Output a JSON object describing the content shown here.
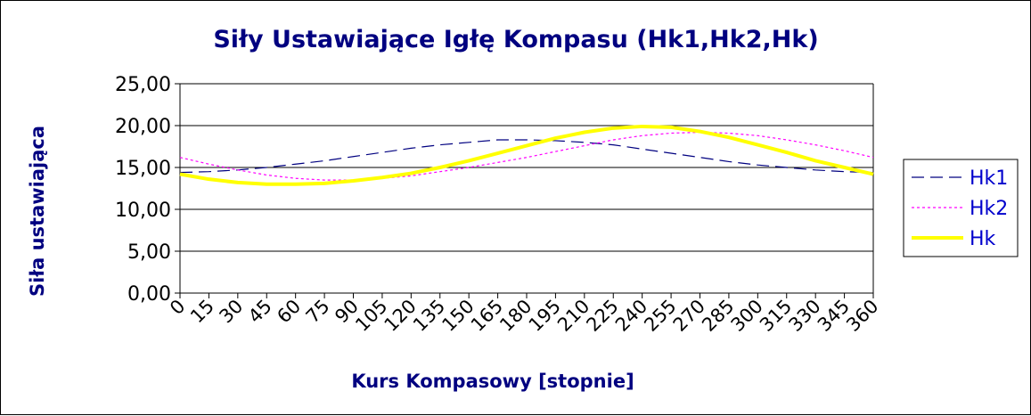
{
  "chart_data": {
    "type": "line",
    "title": "Siły Ustawiające Igłę Kompasu (Hk1,Hk2,Hk)",
    "xlabel": "Kurs Kompasowy  [stopnie]",
    "ylabel": "Siła ustawiająca",
    "categories": [
      "0",
      "15",
      "30",
      "45",
      "60",
      "75",
      "90",
      "105",
      "120",
      "135",
      "150",
      "165",
      "180",
      "195",
      "210",
      "225",
      "240",
      "255",
      "270",
      "285",
      "300",
      "315",
      "330",
      "345",
      "360"
    ],
    "yticks": [
      "0,00",
      "5,00",
      "10,00",
      "15,00",
      "20,00",
      "25,00"
    ],
    "ylim": [
      0,
      25
    ],
    "grid": true,
    "legend_position": "right",
    "series": [
      {
        "name": "Hk1",
        "color": "#000080",
        "style": "dashed",
        "values": [
          14.4,
          14.5,
          14.7,
          15.0,
          15.4,
          15.8,
          16.3,
          16.8,
          17.3,
          17.7,
          18.0,
          18.3,
          18.3,
          18.2,
          18.0,
          17.7,
          17.2,
          16.7,
          16.2,
          15.7,
          15.3,
          15.0,
          14.7,
          14.5,
          14.4
        ]
      },
      {
        "name": "Hk2",
        "color": "#ff00ff",
        "style": "dotted",
        "values": [
          16.2,
          15.4,
          14.7,
          14.1,
          13.7,
          13.5,
          13.5,
          13.7,
          14.0,
          14.5,
          15.0,
          15.6,
          16.2,
          16.9,
          17.6,
          18.3,
          18.8,
          19.1,
          19.2,
          19.1,
          18.8,
          18.3,
          17.7,
          17.0,
          16.2
        ]
      },
      {
        "name": "Hk",
        "color": "#ffff00",
        "style": "solid",
        "values": [
          14.2,
          13.6,
          13.2,
          13.0,
          13.0,
          13.1,
          13.4,
          13.8,
          14.3,
          15.0,
          15.8,
          16.7,
          17.6,
          18.5,
          19.2,
          19.7,
          19.9,
          19.8,
          19.3,
          18.6,
          17.7,
          16.8,
          15.8,
          15.0,
          14.2
        ]
      }
    ]
  }
}
